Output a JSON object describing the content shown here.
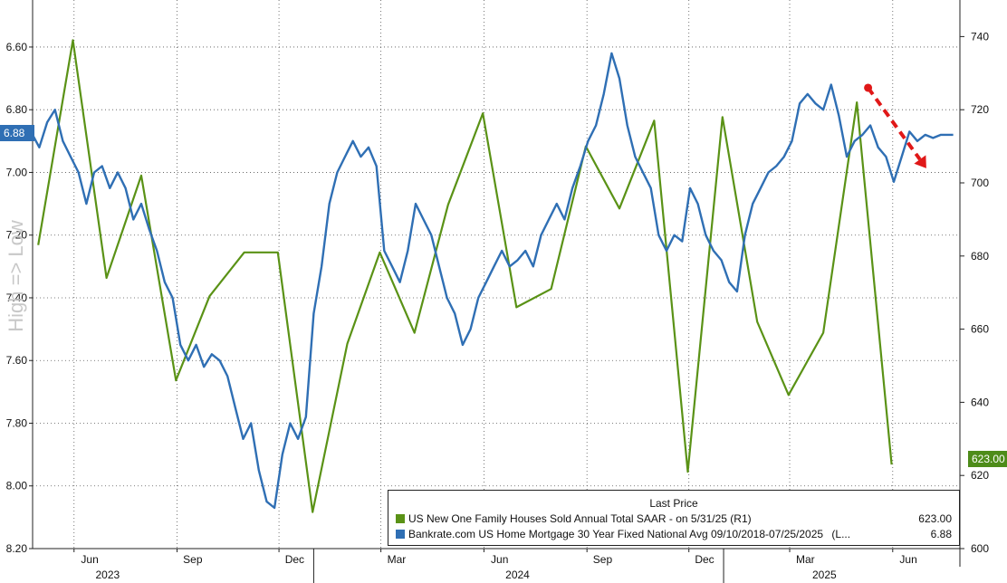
{
  "chart_data": {
    "type": "line",
    "side_label": "High => Low",
    "left_axis": {
      "inverted": true,
      "range": [
        6.45,
        8.2
      ],
      "ticks": [
        "6.60",
        "6.80",
        "7.00",
        "7.20",
        "7.40",
        "7.60",
        "7.80",
        "8.00",
        "8.20"
      ],
      "tick_values": [
        6.6,
        6.8,
        7.0,
        7.2,
        7.4,
        7.6,
        7.8,
        8.0,
        8.2
      ]
    },
    "right_axis": {
      "range": [
        600,
        750
      ],
      "ticks": [
        "600",
        "620",
        "640",
        "660",
        "680",
        "700",
        "720",
        "740"
      ],
      "tick_values": [
        600,
        620,
        640,
        660,
        680,
        700,
        720,
        740
      ]
    },
    "x_axis": {
      "range": [
        "2023-04-25",
        "2025-07-31"
      ],
      "ticks": [
        {
          "label": "Jun",
          "date": "2023-06-15"
        },
        {
          "label": "Sep",
          "date": "2023-09-15"
        },
        {
          "label": "Dec",
          "date": "2023-12-15"
        },
        {
          "label": "Mar",
          "date": "2024-03-15"
        },
        {
          "label": "Jun",
          "date": "2024-06-15"
        },
        {
          "label": "Sep",
          "date": "2024-09-15"
        },
        {
          "label": "Dec",
          "date": "2024-12-15"
        },
        {
          "label": "Mar",
          "date": "2025-03-15"
        },
        {
          "label": "Jun",
          "date": "2025-06-15"
        }
      ],
      "years": [
        {
          "label": "2023",
          "date": "2023-07-01"
        },
        {
          "label": "2024",
          "date": "2024-07-01"
        },
        {
          "label": "2025",
          "date": "2025-04-01"
        }
      ]
    },
    "grid": true,
    "legend": {
      "title": "Last Price",
      "placement": "bottom-right"
    },
    "series": [
      {
        "name": "US New One Family Houses Sold Annual Total SAAR -  on 5/31/25  (R1)",
        "last_value": "623.00",
        "color": "#5a9216",
        "axis": "right",
        "points": [
          [
            "2023-04-30",
            683
          ],
          [
            "2023-05-31",
            739
          ],
          [
            "2023-06-30",
            674
          ],
          [
            "2023-07-31",
            702
          ],
          [
            "2023-08-31",
            646
          ],
          [
            "2023-09-30",
            669
          ],
          [
            "2023-10-31",
            681
          ],
          [
            "2023-11-30",
            681
          ],
          [
            "2023-12-31",
            610
          ],
          [
            "2024-01-31",
            656
          ],
          [
            "2024-02-29",
            681
          ],
          [
            "2024-03-31",
            659
          ],
          [
            "2024-04-30",
            694
          ],
          [
            "2024-05-31",
            719
          ],
          [
            "2024-06-30",
            666
          ],
          [
            "2024-07-31",
            671
          ],
          [
            "2024-08-31",
            710
          ],
          [
            "2024-09-30",
            693
          ],
          [
            "2024-10-31",
            717
          ],
          [
            "2024-11-30",
            621
          ],
          [
            "2024-12-31",
            718
          ],
          [
            "2025-01-31",
            662
          ],
          [
            "2025-02-28",
            642
          ],
          [
            "2025-03-31",
            659
          ],
          [
            "2025-04-30",
            722
          ],
          [
            "2025-05-31",
            623
          ]
        ]
      },
      {
        "name": "Bankrate.com US Home Mortgage 30 Year Fixed National Avg 09/10/2018-07/25/2025",
        "legend_suffix": "(L...",
        "last_value": "6.88",
        "color": "#2f6fb4",
        "axis": "left",
        "points": [
          [
            "2023-04-25",
            6.88
          ],
          [
            "2023-05-01",
            6.92
          ],
          [
            "2023-05-08",
            6.84
          ],
          [
            "2023-05-15",
            6.8
          ],
          [
            "2023-05-22",
            6.9
          ],
          [
            "2023-05-29",
            6.95
          ],
          [
            "2023-06-05",
            7.0
          ],
          [
            "2023-06-12",
            7.1
          ],
          [
            "2023-06-19",
            7.0
          ],
          [
            "2023-06-26",
            6.98
          ],
          [
            "2023-07-03",
            7.05
          ],
          [
            "2023-07-10",
            7.0
          ],
          [
            "2023-07-17",
            7.05
          ],
          [
            "2023-07-24",
            7.15
          ],
          [
            "2023-07-31",
            7.1
          ],
          [
            "2023-08-07",
            7.18
          ],
          [
            "2023-08-14",
            7.25
          ],
          [
            "2023-08-21",
            7.35
          ],
          [
            "2023-08-28",
            7.4
          ],
          [
            "2023-09-04",
            7.55
          ],
          [
            "2023-09-11",
            7.6
          ],
          [
            "2023-09-18",
            7.55
          ],
          [
            "2023-09-25",
            7.62
          ],
          [
            "2023-10-02",
            7.58
          ],
          [
            "2023-10-09",
            7.6
          ],
          [
            "2023-10-16",
            7.65
          ],
          [
            "2023-10-23",
            7.75
          ],
          [
            "2023-10-30",
            7.85
          ],
          [
            "2023-11-06",
            7.8
          ],
          [
            "2023-11-13",
            7.95
          ],
          [
            "2023-11-20",
            8.05
          ],
          [
            "2023-11-27",
            8.07
          ],
          [
            "2023-12-04",
            7.9
          ],
          [
            "2023-12-11",
            7.8
          ],
          [
            "2023-12-18",
            7.85
          ],
          [
            "2023-12-25",
            7.78
          ],
          [
            "2024-01-01",
            7.45
          ],
          [
            "2024-01-08",
            7.3
          ],
          [
            "2024-01-15",
            7.1
          ],
          [
            "2024-01-22",
            7.0
          ],
          [
            "2024-01-29",
            6.95
          ],
          [
            "2024-02-05",
            6.9
          ],
          [
            "2024-02-12",
            6.95
          ],
          [
            "2024-02-19",
            6.92
          ],
          [
            "2024-02-26",
            6.98
          ],
          [
            "2024-03-04",
            7.25
          ],
          [
            "2024-03-11",
            7.3
          ],
          [
            "2024-03-18",
            7.35
          ],
          [
            "2024-03-25",
            7.25
          ],
          [
            "2024-04-01",
            7.1
          ],
          [
            "2024-04-08",
            7.15
          ],
          [
            "2024-04-15",
            7.2
          ],
          [
            "2024-04-22",
            7.3
          ],
          [
            "2024-04-29",
            7.4
          ],
          [
            "2024-05-06",
            7.45
          ],
          [
            "2024-05-13",
            7.55
          ],
          [
            "2024-05-20",
            7.5
          ],
          [
            "2024-05-27",
            7.4
          ],
          [
            "2024-06-03",
            7.35
          ],
          [
            "2024-06-10",
            7.3
          ],
          [
            "2024-06-17",
            7.25
          ],
          [
            "2024-06-24",
            7.3
          ],
          [
            "2024-07-01",
            7.28
          ],
          [
            "2024-07-08",
            7.25
          ],
          [
            "2024-07-15",
            7.3
          ],
          [
            "2024-07-22",
            7.2
          ],
          [
            "2024-07-29",
            7.15
          ],
          [
            "2024-08-05",
            7.1
          ],
          [
            "2024-08-12",
            7.15
          ],
          [
            "2024-08-19",
            7.05
          ],
          [
            "2024-08-26",
            6.98
          ],
          [
            "2024-09-02",
            6.9
          ],
          [
            "2024-09-09",
            6.85
          ],
          [
            "2024-09-16",
            6.75
          ],
          [
            "2024-09-23",
            6.62
          ],
          [
            "2024-09-30",
            6.7
          ],
          [
            "2024-10-07",
            6.85
          ],
          [
            "2024-10-14",
            6.95
          ],
          [
            "2024-10-21",
            7.0
          ],
          [
            "2024-10-28",
            7.05
          ],
          [
            "2024-11-04",
            7.2
          ],
          [
            "2024-11-11",
            7.25
          ],
          [
            "2024-11-18",
            7.2
          ],
          [
            "2024-11-25",
            7.22
          ],
          [
            "2024-12-02",
            7.05
          ],
          [
            "2024-12-09",
            7.1
          ],
          [
            "2024-12-16",
            7.2
          ],
          [
            "2024-12-23",
            7.25
          ],
          [
            "2024-12-30",
            7.28
          ],
          [
            "2025-01-06",
            7.35
          ],
          [
            "2025-01-13",
            7.38
          ],
          [
            "2025-01-20",
            7.2
          ],
          [
            "2025-01-27",
            7.1
          ],
          [
            "2025-02-03",
            7.05
          ],
          [
            "2025-02-10",
            7.0
          ],
          [
            "2025-02-17",
            6.98
          ],
          [
            "2025-02-24",
            6.95
          ],
          [
            "2025-03-03",
            6.9
          ],
          [
            "2025-03-10",
            6.78
          ],
          [
            "2025-03-17",
            6.75
          ],
          [
            "2025-03-24",
            6.78
          ],
          [
            "2025-03-31",
            6.8
          ],
          [
            "2025-04-07",
            6.72
          ],
          [
            "2025-04-14",
            6.82
          ],
          [
            "2025-04-21",
            6.95
          ],
          [
            "2025-04-28",
            6.9
          ],
          [
            "2025-05-05",
            6.88
          ],
          [
            "2025-05-12",
            6.85
          ],
          [
            "2025-05-19",
            6.92
          ],
          [
            "2025-05-26",
            6.95
          ],
          [
            "2025-06-02",
            7.03
          ],
          [
            "2025-06-09",
            6.95
          ],
          [
            "2025-06-16",
            6.87
          ],
          [
            "2025-06-23",
            6.9
          ],
          [
            "2025-06-30",
            6.88
          ],
          [
            "2025-07-07",
            6.89
          ],
          [
            "2025-07-14",
            6.88
          ],
          [
            "2025-07-25",
            6.88
          ]
        ]
      }
    ],
    "annotation": {
      "type": "arrow",
      "color": "#e01818",
      "from": [
        "2025-05-10",
        726
      ],
      "to": [
        "2025-07-01",
        704
      ]
    }
  }
}
